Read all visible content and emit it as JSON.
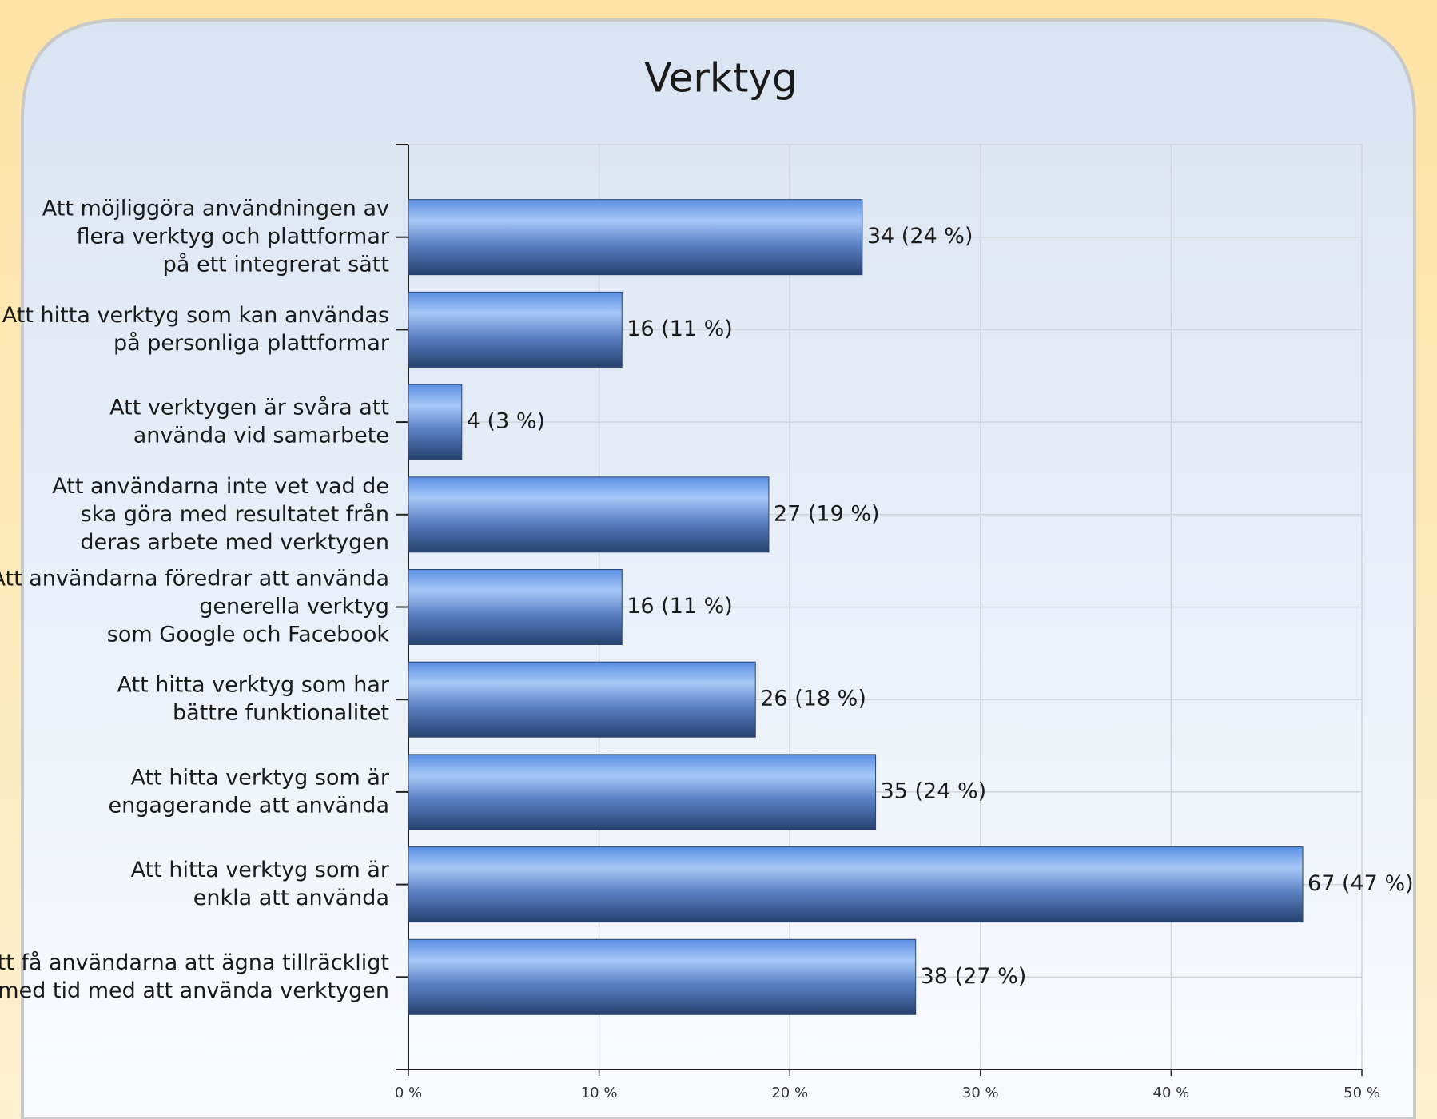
{
  "chart_data": {
    "type": "hbar",
    "title": "Verktyg",
    "categories": [
      "Att möjliggöra användningen av\nflera verktyg och plattformar\npå ett integrerat sätt",
      "Att hitta verktyg som kan användas\npå personliga plattformar",
      "Att verktygen är svåra att\nanvända vid samarbete",
      "Att användarna inte vet vad de\nska göra med resultatet från\nderas arbete med verktygen",
      "Att användarna föredrar att använda\ngenerella verktyg\nsom Google och Facebook",
      "Att hitta verktyg som har\nbättre funktionalitet",
      "Att hitta verktyg som är\nengagerande att använda",
      "Att hitta verktyg som är\nenkla att använda",
      "Att få användarna att ägna tillräckligt\nmed tid med att använda verktygen"
    ],
    "values": [
      23.8,
      11.2,
      2.8,
      18.9,
      11.2,
      18.2,
      24.5,
      46.9,
      26.6
    ],
    "value_labels": [
      "34 (24 %)",
      "16 (11 %)",
      "4 (3 %)",
      "27 (19 %)",
      "16 (11 %)",
      "26 (18 %)",
      "35 (24 %)",
      "67 (47 %)",
      "38 (27 %)"
    ],
    "color": "#5a8fe0",
    "xlim": [
      0,
      50
    ],
    "xticks": [
      {
        "value": 0,
        "label": "0 %"
      },
      {
        "value": 10,
        "label": "10 %"
      },
      {
        "value": 20,
        "label": "20 %"
      },
      {
        "value": 30,
        "label": "30 %"
      },
      {
        "value": 40,
        "label": "40 %"
      },
      {
        "value": 50,
        "label": "50 %"
      }
    ],
    "grid": true
  }
}
